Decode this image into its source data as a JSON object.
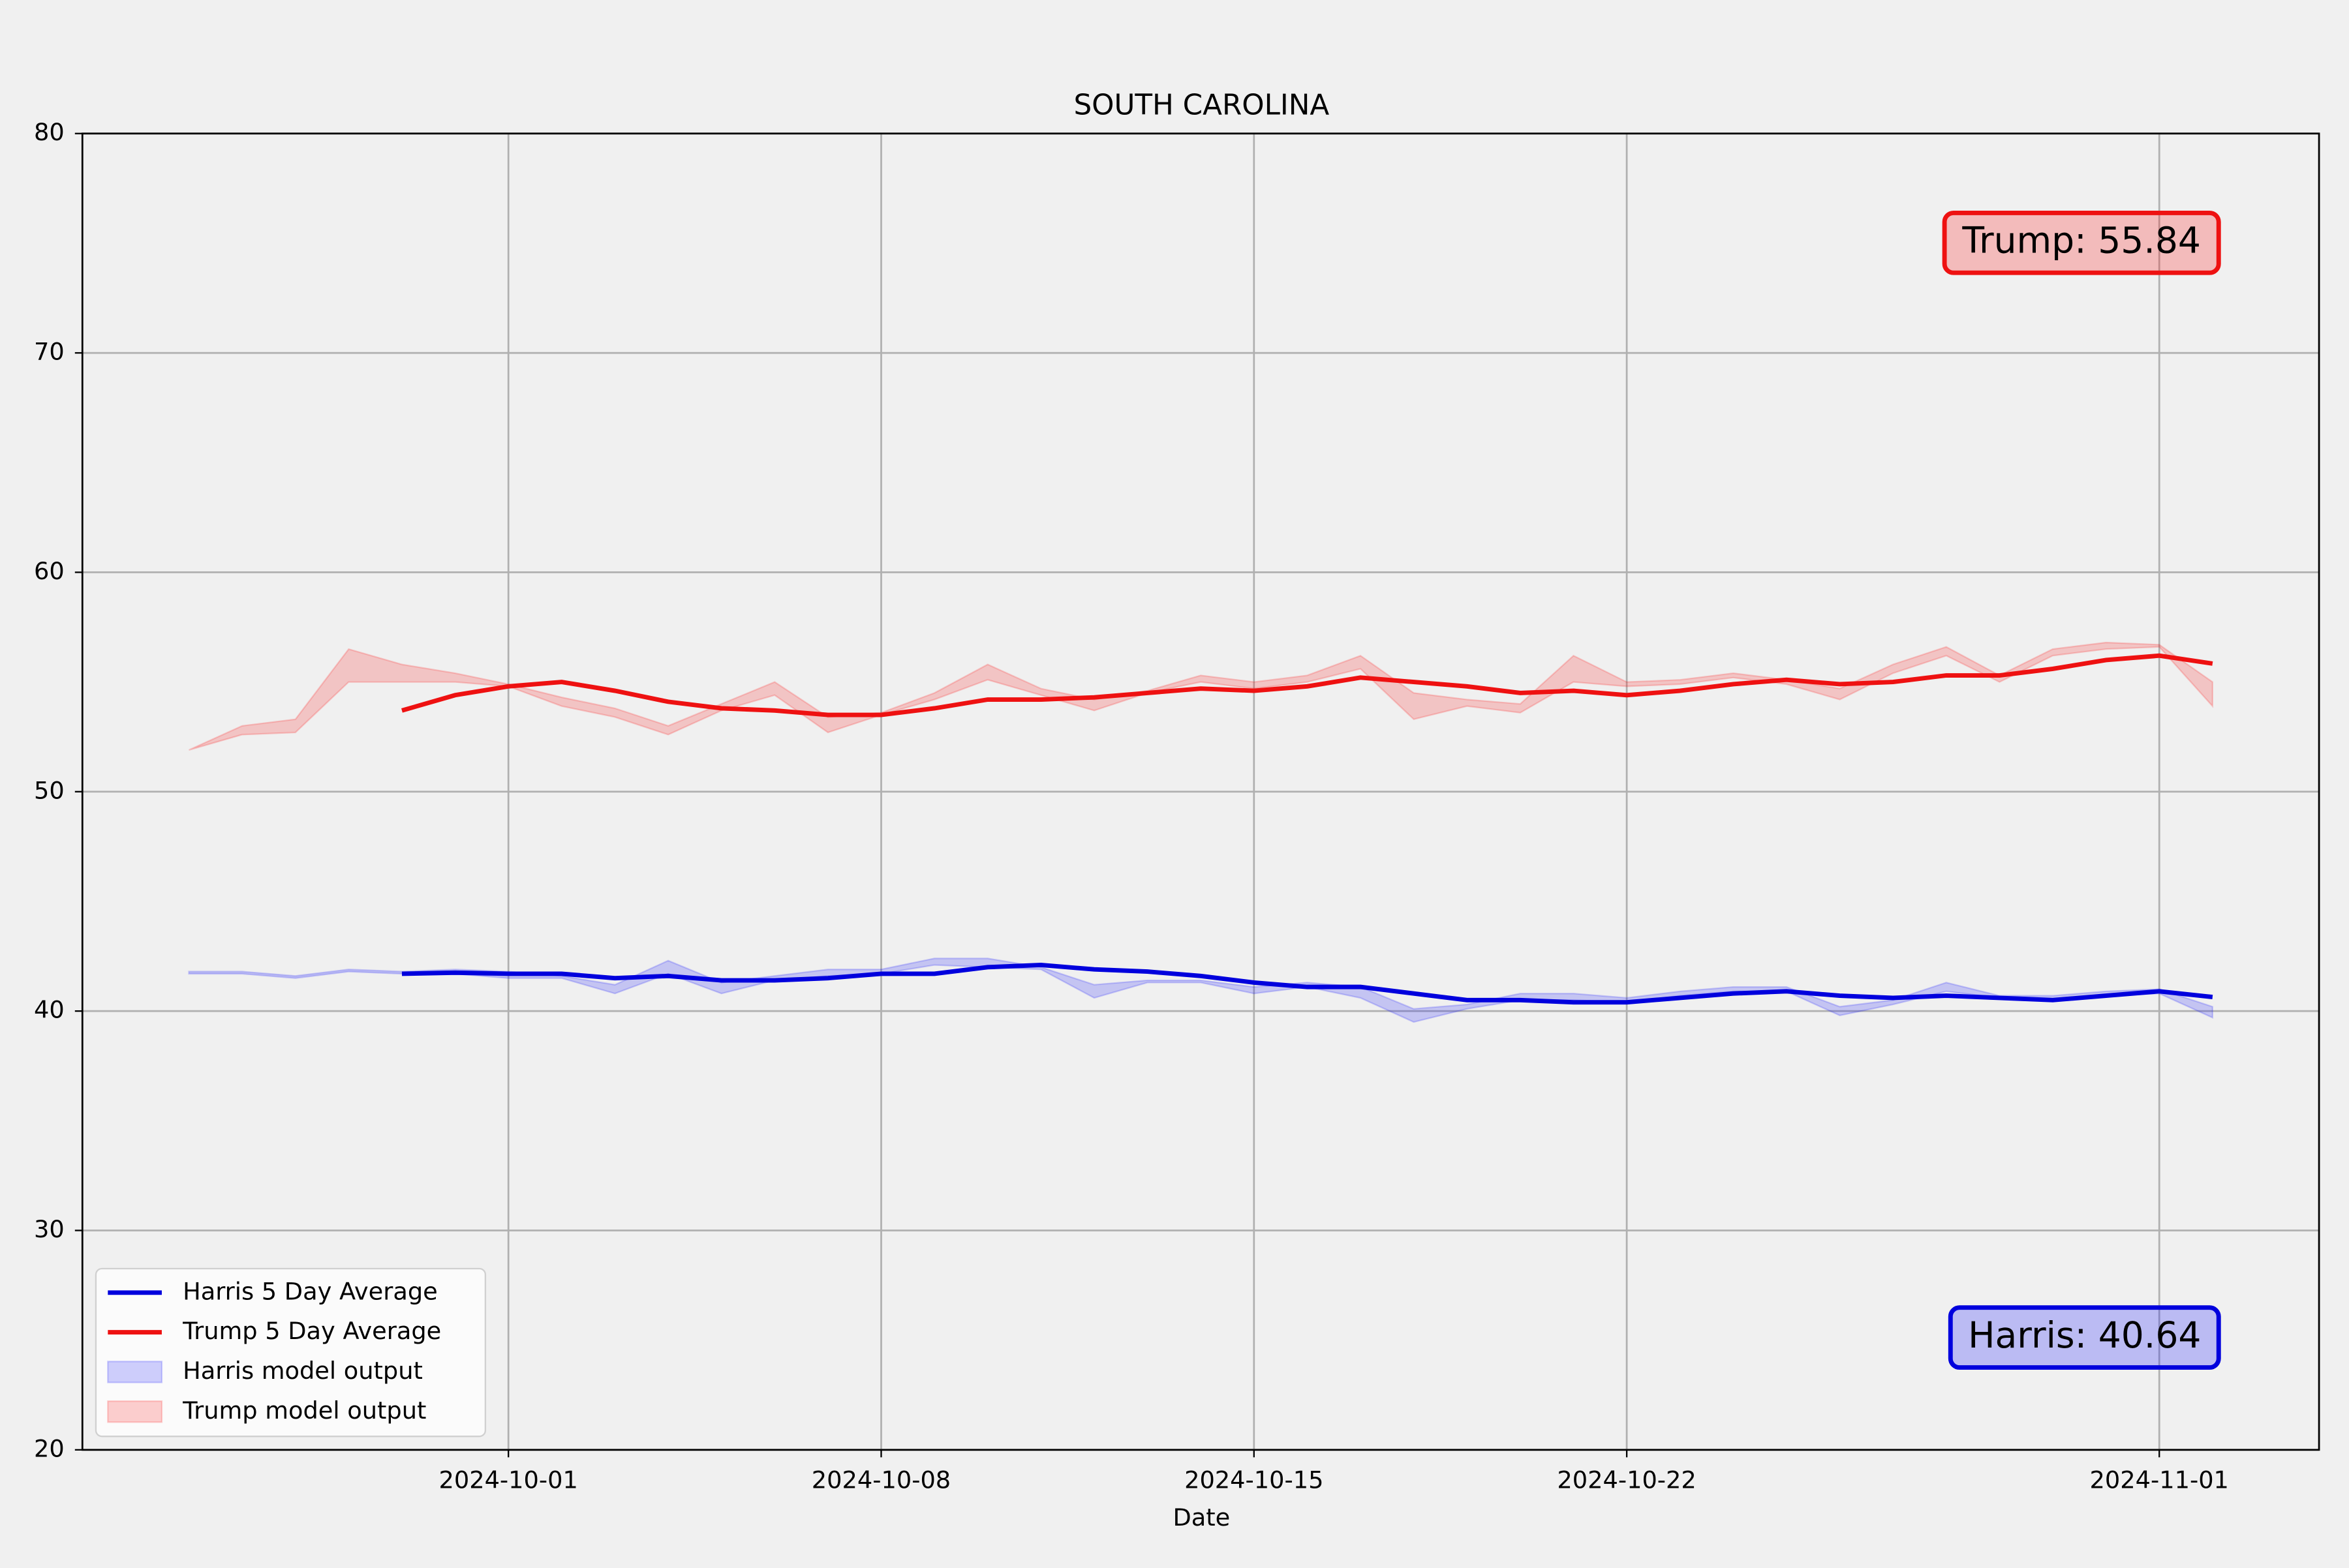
{
  "chart_data": {
    "type": "line",
    "title": "SOUTH CAROLINA",
    "xlabel": "Date",
    "x": [
      "2024-09-25",
      "2024-09-26",
      "2024-09-27",
      "2024-09-28",
      "2024-09-29",
      "2024-09-30",
      "2024-10-01",
      "2024-10-02",
      "2024-10-03",
      "2024-10-04",
      "2024-10-05",
      "2024-10-06",
      "2024-10-07",
      "2024-10-08",
      "2024-10-09",
      "2024-10-10",
      "2024-10-11",
      "2024-10-12",
      "2024-10-13",
      "2024-10-14",
      "2024-10-15",
      "2024-10-16",
      "2024-10-17",
      "2024-10-18",
      "2024-10-19",
      "2024-10-20",
      "2024-10-21",
      "2024-10-22",
      "2024-10-23",
      "2024-10-24",
      "2024-10-25",
      "2024-10-26",
      "2024-10-27",
      "2024-10-28",
      "2024-10-29",
      "2024-10-30",
      "2024-10-31",
      "2024-11-01",
      "2024-11-02"
    ],
    "series": [
      {
        "name": "Harris 5 Day Average",
        "color": "#0000dd",
        "values": [
          null,
          null,
          null,
          null,
          41.7,
          41.75,
          41.7,
          41.7,
          41.5,
          41.6,
          41.4,
          41.4,
          41.5,
          41.7,
          41.7,
          42.0,
          42.1,
          41.9,
          41.8,
          41.6,
          41.3,
          41.1,
          41.1,
          40.8,
          40.5,
          40.5,
          40.4,
          40.4,
          40.6,
          40.8,
          40.9,
          40.7,
          40.6,
          40.7,
          40.6,
          40.5,
          40.7,
          40.9,
          40.64
        ]
      },
      {
        "name": "Trump 5 Day Average",
        "color": "#ee1111",
        "values": [
          null,
          null,
          null,
          null,
          53.7,
          54.4,
          54.8,
          55.0,
          54.6,
          54.1,
          53.8,
          53.7,
          53.5,
          53.5,
          53.8,
          54.2,
          54.2,
          54.3,
          54.5,
          54.7,
          54.6,
          54.8,
          55.2,
          55.0,
          54.8,
          54.5,
          54.6,
          54.4,
          54.6,
          54.9,
          55.1,
          54.9,
          55.0,
          55.3,
          55.3,
          55.6,
          56.0,
          56.2,
          55.84
        ]
      }
    ],
    "bands": [
      {
        "name": "Harris model output",
        "color": "#0000ff",
        "alpha": 0.18,
        "lower": [
          41.7,
          41.7,
          41.5,
          41.8,
          41.7,
          41.7,
          41.5,
          41.5,
          40.8,
          41.7,
          40.8,
          41.4,
          41.6,
          41.7,
          42.1,
          42.0,
          41.9,
          40.6,
          41.3,
          41.3,
          40.8,
          41.1,
          40.6,
          39.5,
          40.1,
          40.5,
          40.5,
          40.4,
          40.7,
          40.9,
          40.9,
          39.8,
          40.3,
          40.9,
          40.6,
          40.5,
          40.7,
          40.8,
          39.7
        ],
        "upper": [
          41.8,
          41.8,
          41.6,
          41.9,
          41.8,
          41.9,
          41.8,
          41.6,
          41.2,
          42.3,
          41.3,
          41.6,
          41.9,
          41.9,
          42.4,
          42.4,
          42.0,
          41.2,
          41.4,
          41.4,
          41.1,
          41.3,
          41.1,
          40.1,
          40.3,
          40.8,
          40.8,
          40.6,
          40.9,
          41.1,
          41.1,
          40.2,
          40.5,
          41.3,
          40.7,
          40.7,
          40.9,
          41.0,
          40.2
        ]
      },
      {
        "name": "Trump model output",
        "color": "#ff0000",
        "alpha": 0.18,
        "lower": [
          51.9,
          52.6,
          52.7,
          55.0,
          55.0,
          55.0,
          54.8,
          53.9,
          53.4,
          52.6,
          53.7,
          54.4,
          52.7,
          53.5,
          54.2,
          55.1,
          54.4,
          53.7,
          54.5,
          55.0,
          54.7,
          55.0,
          55.6,
          53.3,
          53.9,
          53.6,
          55.0,
          54.8,
          54.9,
          55.2,
          54.9,
          54.2,
          55.4,
          56.2,
          55.0,
          56.2,
          56.5,
          56.6,
          53.9
        ],
        "upper": [
          51.9,
          53.0,
          53.3,
          56.5,
          55.8,
          55.4,
          54.9,
          54.3,
          53.8,
          53.0,
          54.0,
          55.0,
          53.4,
          53.6,
          54.5,
          55.8,
          54.7,
          54.2,
          54.6,
          55.3,
          55.0,
          55.3,
          56.2,
          54.5,
          54.2,
          54.0,
          56.2,
          55.0,
          55.1,
          55.4,
          55.1,
          54.7,
          55.8,
          56.6,
          55.3,
          56.5,
          56.8,
          56.7,
          55.0
        ]
      }
    ],
    "annotations": [
      "Trump: 55.84",
      "Harris: 40.64"
    ],
    "xlim": [
      "2024-09-23",
      "2024-11-04"
    ],
    "xticks": [
      "2024-10-01",
      "2024-10-08",
      "2024-10-15",
      "2024-10-22",
      "2024-11-01"
    ],
    "ylim": [
      20,
      80
    ],
    "yticks": [
      20,
      30,
      40,
      50,
      60,
      70,
      80
    ],
    "grid": true,
    "legend": "lower left"
  }
}
